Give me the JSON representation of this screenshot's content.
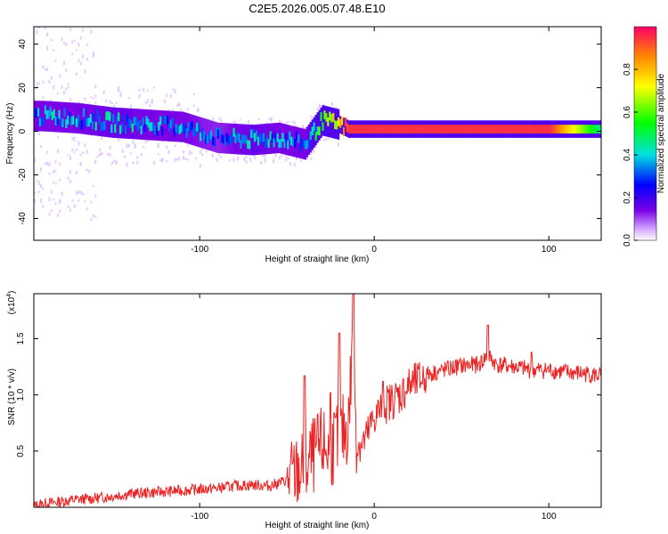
{
  "figure_title": "C2E5.2026.005.07.48.E10",
  "chart_data": [
    {
      "type": "heatmap",
      "title": "C2E5.2026.005.07.48.E10",
      "xlabel": "Height of straight line (km)",
      "ylabel": "Frequency (Hz)",
      "xlim": [
        -195,
        130
      ],
      "ylim": [
        -50,
        48
      ],
      "x_ticks": [
        -100,
        0,
        100
      ],
      "y_ticks": [
        -40,
        -20,
        0,
        20,
        40
      ],
      "x_tick_labels": [
        "-100",
        "0",
        "100"
      ],
      "y_tick_labels": [
        "-40",
        "-20",
        "0",
        "20",
        "40"
      ],
      "colorbar": {
        "label": "Normalized spectral amplitude",
        "range": [
          0,
          1
        ],
        "ticks": [
          "0.0",
          "0.2",
          "0.4",
          "0.6",
          "0.8"
        ],
        "tick_values": [
          0.0,
          0.2,
          0.4,
          0.6,
          0.8
        ],
        "colormap": "rainbow (purple-blue-cyan-green-yellow-red)"
      },
      "ridge": {
        "x": [
          -190,
          -170,
          -150,
          -130,
          -110,
          -90,
          -70,
          -55,
          -40,
          -30,
          -20,
          -15,
          0,
          50,
          100,
          130
        ],
        "freq": [
          7,
          6,
          4,
          3,
          2,
          -3,
          -4,
          -3,
          -6,
          5,
          3,
          1,
          1,
          1,
          1,
          1
        ],
        "amplitude": [
          0.35,
          0.35,
          0.4,
          0.35,
          0.35,
          0.3,
          0.4,
          0.35,
          0.35,
          0.6,
          0.75,
          0.95,
          0.95,
          0.95,
          0.95,
          0.45
        ]
      }
    },
    {
      "type": "line",
      "xlabel": "Height of straight line (km)",
      "ylabel": "SNR (10 * v/v)",
      "y_scale_label_base": "(x10",
      "y_scale_label_exp": "4",
      "y_scale_label_close": ")",
      "xlim": [
        -195,
        130
      ],
      "ylim": [
        0,
        1.9
      ],
      "x_ticks": [
        -100,
        0,
        100
      ],
      "y_ticks": [
        0.5,
        1.0,
        1.5
      ],
      "x_tick_labels": [
        "-100",
        "0",
        "100"
      ],
      "y_tick_labels": [
        "0.5",
        "1.0",
        "1.5"
      ],
      "series": [
        {
          "name": "SNR",
          "color": "#ee2222",
          "x": [
            -195,
            -190,
            -180,
            -170,
            -160,
            -150,
            -140,
            -130,
            -120,
            -110,
            -100,
            -90,
            -80,
            -70,
            -60,
            -50,
            -45,
            -40,
            -35,
            -30,
            -25,
            -20,
            -15,
            -12,
            -10,
            -5,
            0,
            5,
            10,
            15,
            20,
            25,
            30,
            40,
            50,
            60,
            65,
            70,
            80,
            90,
            100,
            110,
            120,
            130
          ],
          "y": [
            0.01,
            0.03,
            0.05,
            0.07,
            0.08,
            0.1,
            0.12,
            0.13,
            0.14,
            0.15,
            0.16,
            0.17,
            0.19,
            0.2,
            0.19,
            0.24,
            0.3,
            0.35,
            0.45,
            0.55,
            0.5,
            0.65,
            0.7,
            1.55,
            0.55,
            0.6,
            0.8,
            0.9,
            0.95,
            1.0,
            1.08,
            1.12,
            1.18,
            1.22,
            1.26,
            1.27,
            1.35,
            1.27,
            1.25,
            1.22,
            1.22,
            1.2,
            1.19,
            1.17
          ],
          "spikes": [
            {
              "x": -40,
              "y": 1.17
            },
            {
              "x": -25,
              "y": 1.02
            },
            {
              "x": -20,
              "y": 1.55
            },
            {
              "x": -12,
              "y": 1.95
            },
            {
              "x": 5,
              "y": 1.12
            },
            {
              "x": 65,
              "y": 1.62
            },
            {
              "x": 90,
              "y": 1.38
            }
          ]
        }
      ]
    }
  ]
}
